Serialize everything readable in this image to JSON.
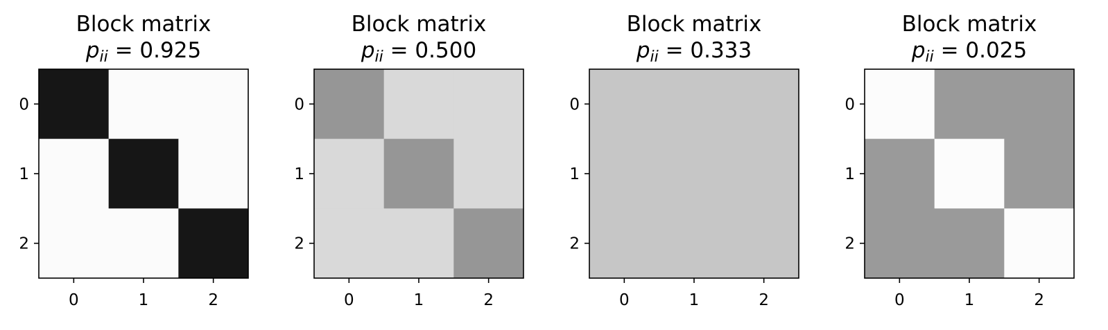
{
  "chart_data": [
    {
      "type": "heatmap",
      "title": "Block matrix",
      "subtitle_symbol": "p",
      "subtitle_subscript": "ii",
      "subtitle_value": "0.925",
      "x_ticks": [
        "0",
        "1",
        "2"
      ],
      "y_ticks": [
        "0",
        "1",
        "2"
      ],
      "colormap": "Greys",
      "color_range": [
        0,
        1
      ],
      "grid": false,
      "values": [
        [
          0.925,
          0.0375,
          0.0375
        ],
        [
          0.0375,
          0.925,
          0.0375
        ],
        [
          0.0375,
          0.0375,
          0.925
        ]
      ]
    },
    {
      "type": "heatmap",
      "title": "Block matrix",
      "subtitle_symbol": "p",
      "subtitle_subscript": "ii",
      "subtitle_value": "0.500",
      "x_ticks": [
        "0",
        "1",
        "2"
      ],
      "y_ticks": [
        "0",
        "1",
        "2"
      ],
      "colormap": "Greys",
      "color_range": [
        0,
        1
      ],
      "grid": false,
      "values": [
        [
          0.5,
          0.25,
          0.25
        ],
        [
          0.25,
          0.5,
          0.25
        ],
        [
          0.25,
          0.25,
          0.5
        ]
      ]
    },
    {
      "type": "heatmap",
      "title": "Block matrix",
      "subtitle_symbol": "p",
      "subtitle_subscript": "ii",
      "subtitle_value": "0.333",
      "x_ticks": [
        "0",
        "1",
        "2"
      ],
      "y_ticks": [
        "0",
        "1",
        "2"
      ],
      "colormap": "Greys",
      "color_range": [
        0,
        1
      ],
      "grid": false,
      "values": [
        [
          0.333,
          0.333,
          0.333
        ],
        [
          0.333,
          0.333,
          0.333
        ],
        [
          0.333,
          0.333,
          0.333
        ]
      ]
    },
    {
      "type": "heatmap",
      "title": "Block matrix",
      "subtitle_symbol": "p",
      "subtitle_subscript": "ii",
      "subtitle_value": "0.025",
      "x_ticks": [
        "0",
        "1",
        "2"
      ],
      "y_ticks": [
        "0",
        "1",
        "2"
      ],
      "colormap": "Greys",
      "color_range": [
        0,
        1
      ],
      "grid": false,
      "values": [
        [
          0.025,
          0.4875,
          0.4875
        ],
        [
          0.4875,
          0.025,
          0.4875
        ],
        [
          0.4875,
          0.4875,
          0.025
        ]
      ]
    }
  ]
}
